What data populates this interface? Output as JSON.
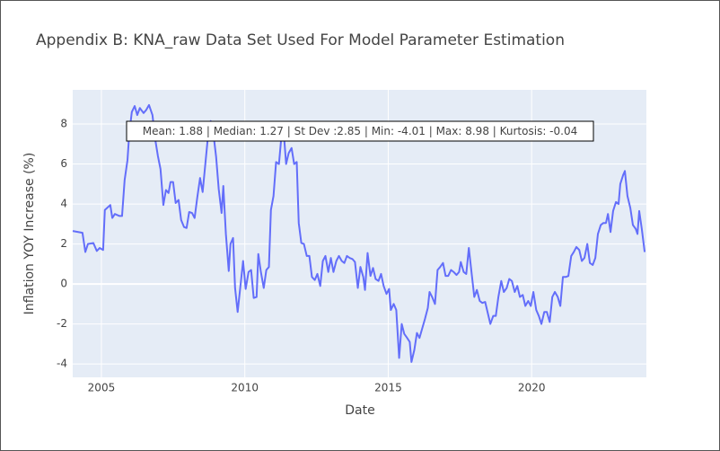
{
  "chart_data": {
    "type": "line",
    "title": "Appendix B: KNA_raw Data Set Used For Model Parameter Estimation",
    "x_label": "Date",
    "y_label": "Inflation YOY Increase (%)",
    "annotation": "Mean: 1.88 | Median: 1.27 | St Dev :2.85 | Min: -4.01 | Max: 8.98 | Kurtosis: -0.04",
    "xlim": [
      2004,
      2024
    ],
    "ylim": [
      -4.67,
      9.71
    ],
    "xticks": [
      2005,
      2010,
      2015,
      2020
    ],
    "yticks": [
      -4,
      -2,
      0,
      2,
      4,
      6,
      8
    ],
    "grid": true,
    "series": [
      {
        "color": "#636efa",
        "x": [
          2004.0,
          2004.34,
          2004.44,
          2004.53,
          2004.72,
          2004.84,
          2004.94,
          2005.06,
          2005.12,
          2005.31,
          2005.38,
          2005.47,
          2005.63,
          2005.72,
          2005.81,
          2005.91,
          2005.97,
          2006.06,
          2006.16,
          2006.25,
          2006.34,
          2006.47,
          2006.56,
          2006.66,
          2006.78,
          2006.88,
          2006.97,
          2007.06,
          2007.16,
          2007.25,
          2007.34,
          2007.41,
          2007.5,
          2007.59,
          2007.69,
          2007.78,
          2007.88,
          2007.97,
          2008.06,
          2008.16,
          2008.25,
          2008.34,
          2008.44,
          2008.53,
          2008.63,
          2008.72,
          2008.81,
          2008.91,
          2009.0,
          2009.09,
          2009.19,
          2009.25,
          2009.34,
          2009.44,
          2009.5,
          2009.59,
          2009.66,
          2009.75,
          2009.84,
          2009.94,
          2010.03,
          2010.13,
          2010.22,
          2010.31,
          2010.41,
          2010.47,
          2010.56,
          2010.66,
          2010.75,
          2010.84,
          2010.91,
          2011.0,
          2011.09,
          2011.19,
          2011.28,
          2011.34,
          2011.44,
          2011.53,
          2011.63,
          2011.72,
          2011.81,
          2011.88,
          2011.97,
          2012.06,
          2012.16,
          2012.25,
          2012.34,
          2012.44,
          2012.53,
          2012.63,
          2012.72,
          2012.81,
          2012.91,
          2013.0,
          2013.09,
          2013.19,
          2013.28,
          2013.38,
          2013.47,
          2013.56,
          2013.66,
          2013.75,
          2013.84,
          2013.94,
          2014.03,
          2014.13,
          2014.19,
          2014.28,
          2014.38,
          2014.47,
          2014.56,
          2014.66,
          2014.75,
          2014.84,
          2014.94,
          2015.03,
          2015.09,
          2015.19,
          2015.28,
          2015.38,
          2015.47,
          2015.56,
          2015.66,
          2015.75,
          2015.81,
          2015.91,
          2016.0,
          2016.09,
          2016.19,
          2016.28,
          2016.38,
          2016.44,
          2016.53,
          2016.63,
          2016.72,
          2016.81,
          2016.91,
          2017.0,
          2017.09,
          2017.19,
          2017.28,
          2017.38,
          2017.47,
          2017.53,
          2017.63,
          2017.72,
          2017.81,
          2017.91,
          2018.0,
          2018.09,
          2018.19,
          2018.28,
          2018.38,
          2018.47,
          2018.56,
          2018.66,
          2018.75,
          2018.84,
          2018.94,
          2019.03,
          2019.13,
          2019.22,
          2019.31,
          2019.41,
          2019.5,
          2019.59,
          2019.69,
          2019.78,
          2019.88,
          2019.97,
          2020.06,
          2020.16,
          2020.25,
          2020.34,
          2020.44,
          2020.53,
          2020.63,
          2020.72,
          2020.81,
          2020.91,
          2021.0,
          2021.09,
          2021.19,
          2021.28,
          2021.38,
          2021.47,
          2021.56,
          2021.66,
          2021.75,
          2021.84,
          2021.94,
          2022.03,
          2022.13,
          2022.22,
          2022.31,
          2022.41,
          2022.5,
          2022.59,
          2022.66,
          2022.75,
          2022.84,
          2022.94,
          2023.03,
          2023.09,
          2023.19,
          2023.25,
          2023.34,
          2023.44,
          2023.53,
          2023.63,
          2023.69,
          2023.75,
          2023.84,
          2023.94
        ],
        "values": [
          2.65,
          2.56,
          1.6,
          2.0,
          2.05,
          1.65,
          1.8,
          1.7,
          3.7,
          3.95,
          3.3,
          3.5,
          3.4,
          3.4,
          5.2,
          6.2,
          7.5,
          8.6,
          8.9,
          8.45,
          8.8,
          8.55,
          8.7,
          8.95,
          8.45,
          7.2,
          6.4,
          5.75,
          3.95,
          4.7,
          4.55,
          5.1,
          5.1,
          4.05,
          4.2,
          3.2,
          2.85,
          2.8,
          3.6,
          3.55,
          3.3,
          4.3,
          5.3,
          4.6,
          6.1,
          7.45,
          8.15,
          7.45,
          6.35,
          4.75,
          3.55,
          4.9,
          2.5,
          0.65,
          2.0,
          2.3,
          -0.2,
          -1.4,
          -0.2,
          1.15,
          -0.25,
          0.6,
          0.7,
          -0.7,
          -0.65,
          1.5,
          0.6,
          -0.2,
          0.7,
          0.85,
          3.7,
          4.4,
          6.1,
          6.0,
          7.45,
          7.9,
          6.0,
          6.55,
          6.8,
          6.0,
          6.1,
          3.05,
          2.05,
          2.0,
          1.4,
          1.4,
          0.35,
          0.2,
          0.5,
          -0.1,
          1.15,
          1.4,
          0.6,
          1.3,
          0.6,
          1.15,
          1.4,
          1.15,
          1.05,
          1.4,
          1.3,
          1.25,
          1.1,
          -0.2,
          0.85,
          0.35,
          -0.3,
          1.55,
          0.4,
          0.8,
          0.25,
          0.15,
          0.5,
          -0.1,
          -0.5,
          -0.25,
          -1.3,
          -1.0,
          -1.3,
          -3.7,
          -2.0,
          -2.5,
          -2.7,
          -2.9,
          -3.9,
          -3.3,
          -2.45,
          -2.7,
          -2.2,
          -1.75,
          -1.2,
          -0.4,
          -0.65,
          -1.0,
          0.7,
          0.85,
          1.05,
          0.4,
          0.4,
          0.7,
          0.6,
          0.45,
          0.6,
          1.1,
          0.6,
          0.5,
          1.8,
          0.5,
          -0.65,
          -0.3,
          -0.85,
          -0.95,
          -0.9,
          -1.45,
          -2.0,
          -1.6,
          -1.6,
          -0.65,
          0.15,
          -0.4,
          -0.2,
          0.25,
          0.15,
          -0.4,
          -0.1,
          -0.65,
          -0.55,
          -1.1,
          -0.85,
          -1.1,
          -0.4,
          -1.3,
          -1.6,
          -2.0,
          -1.4,
          -1.4,
          -1.9,
          -0.65,
          -0.4,
          -0.65,
          -1.1,
          0.35,
          0.35,
          0.4,
          1.4,
          1.6,
          1.85,
          1.7,
          1.15,
          1.3,
          2.0,
          1.05,
          0.95,
          1.3,
          2.5,
          2.95,
          3.05,
          3.05,
          3.5,
          2.6,
          3.65,
          4.1,
          4.0,
          5.0,
          5.45,
          5.65,
          4.4,
          3.8,
          2.95,
          2.75,
          2.5,
          3.65,
          2.75,
          1.6
        ]
      }
    ]
  }
}
